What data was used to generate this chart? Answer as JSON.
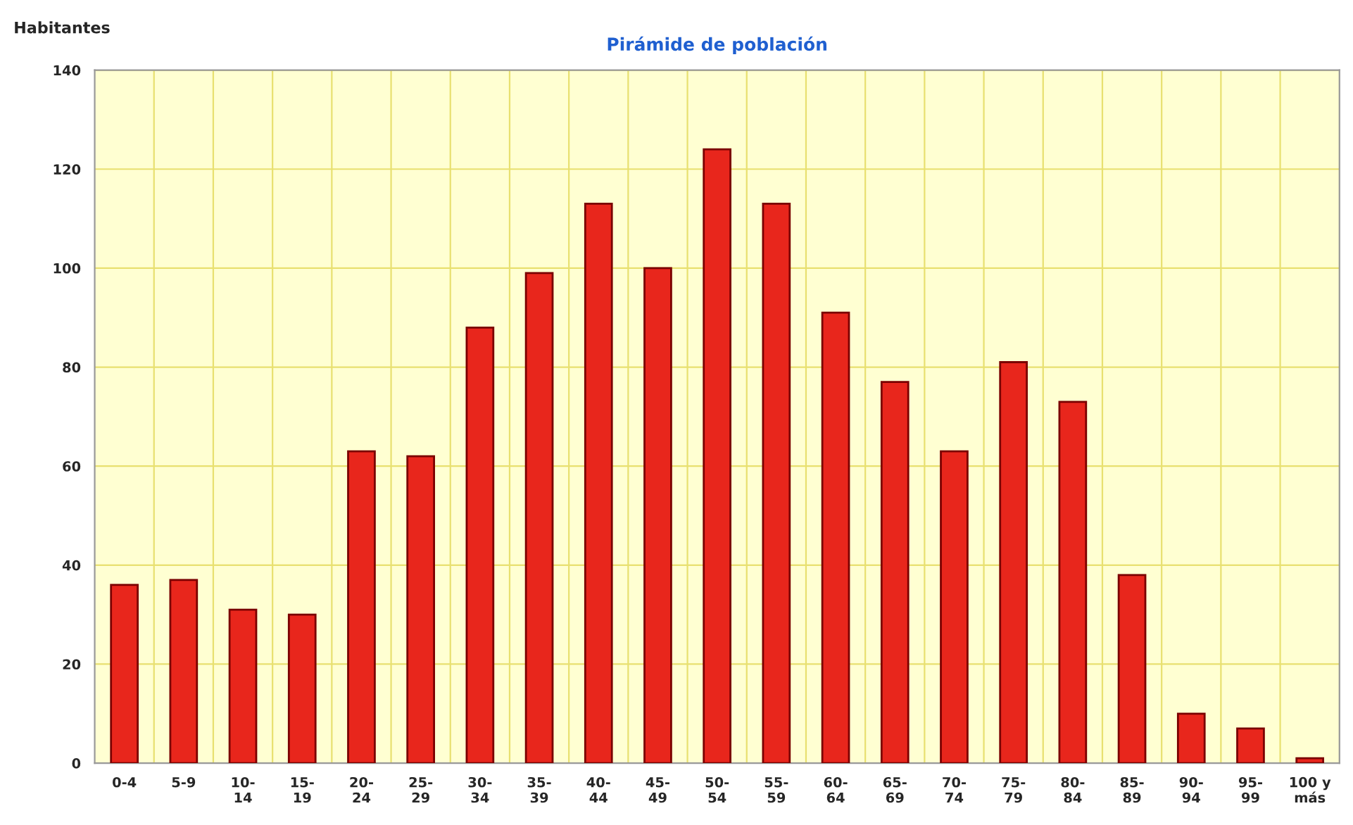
{
  "chart_data": {
    "type": "bar",
    "title": "Pirámide de población",
    "ylabel": "Habitantes",
    "categories": [
      "0-4",
      "5-9",
      "10-\n14",
      "15-\n19",
      "20-\n24",
      "25-\n29",
      "30-\n34",
      "35-\n39",
      "40-\n44",
      "45-\n49",
      "50-\n54",
      "55-\n59",
      "60-\n64",
      "65-\n69",
      "70-\n74",
      "75-\n79",
      "80-\n84",
      "85-\n89",
      "90-\n94",
      "95-\n99",
      "100 y\nmás"
    ],
    "values": [
      36,
      37,
      31,
      30,
      63,
      62,
      88,
      99,
      113,
      100,
      124,
      113,
      91,
      77,
      63,
      81,
      73,
      38,
      10,
      7,
      1
    ],
    "color": "#e8261c",
    "ylim": [
      0,
      140
    ],
    "yticks": [
      0,
      20,
      40,
      60,
      80,
      100,
      120,
      140
    ],
    "grid": true,
    "legend": false
  }
}
